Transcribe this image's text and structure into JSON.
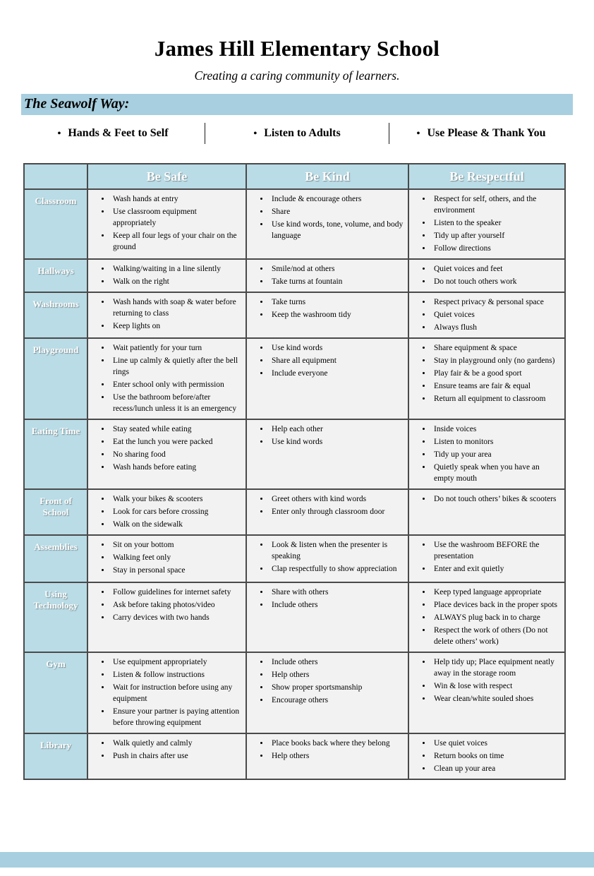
{
  "header": {
    "title": "James Hill Elementary School",
    "subtitle": "Creating a caring community of learners.",
    "banner": "The Seawolf Way:",
    "pillars": [
      "Hands & Feet to Self",
      "Listen to Adults",
      "Use Please & Thank You"
    ],
    "pillar_bullet": "•"
  },
  "colors": {
    "banner_blue": "#a7cfdf",
    "cell_blue": "#b9dce6",
    "cell_gray": "#f2f2f2",
    "border_gray": "#4a4a4a"
  },
  "table": {
    "columns": [
      "Be Safe",
      "Be Kind",
      "Be Respectful"
    ],
    "rows": [
      {
        "label": "Classroom",
        "be_safe": [
          "Wash hands at entry",
          "Use classroom equipment appropriately",
          "Keep all four legs of your chair on the ground"
        ],
        "be_kind": [
          "Include & encourage others",
          "Share",
          "Use kind words, tone, volume, and body language"
        ],
        "be_respectful": [
          "Respect for self, others, and the environment",
          "Listen to the speaker",
          "Tidy up after yourself",
          "Follow directions"
        ]
      },
      {
        "label": "Hallways",
        "be_safe": [
          "Walking/waiting in a line silently",
          "Walk on the right"
        ],
        "be_kind": [
          "Smile/nod at others",
          "Take turns at fountain"
        ],
        "be_respectful": [
          "Quiet voices and feet",
          "Do not touch others work"
        ]
      },
      {
        "label": "Washrooms",
        "be_safe": [
          "Wash hands with soap & water before returning to class",
          "Keep lights on"
        ],
        "be_kind": [
          "Take turns",
          "Keep the washroom tidy"
        ],
        "be_respectful": [
          "Respect privacy & personal space",
          "Quiet voices",
          "Always flush"
        ]
      },
      {
        "label": "Playground",
        "be_safe": [
          "Wait patiently for your turn",
          "Line up calmly & quietly after the bell rings",
          "Enter school only with permission",
          "Use the bathroom before/after recess/lunch unless it is an emergency"
        ],
        "be_kind": [
          "Use kind words",
          "Share all equipment",
          "Include everyone"
        ],
        "be_respectful": [
          "Share equipment & space",
          "Stay in playground only (no gardens)",
          "Play fair & be a good sport",
          "Ensure teams are fair & equal",
          "Return all equipment to classroom"
        ]
      },
      {
        "label": "Eating Time",
        "be_safe": [
          "Stay seated while eating",
          "Eat the lunch you were packed",
          "No sharing food",
          "Wash hands before eating"
        ],
        "be_kind": [
          "Help each other",
          "Use kind words"
        ],
        "be_respectful": [
          "Inside voices",
          "Listen to monitors",
          "Tidy up your area",
          "Quietly speak when you have an empty mouth"
        ]
      },
      {
        "label": "Front of School",
        "be_safe": [
          "Walk your bikes & scooters",
          "Look for cars before crossing",
          "Walk on the sidewalk"
        ],
        "be_kind": [
          "Greet others with kind words",
          "Enter only through classroom door"
        ],
        "be_respectful": [
          "Do not touch others’ bikes & scooters"
        ]
      },
      {
        "label": "Assemblies",
        "be_safe": [
          "Sit on your bottom",
          "Walking feet only",
          "Stay in personal space"
        ],
        "be_kind": [
          "Look & listen when the presenter is speaking",
          "Clap respectfully to show appreciation"
        ],
        "be_respectful": [
          "Use the washroom BEFORE the presentation",
          "Enter and exit quietly"
        ]
      },
      {
        "label": "Using Technology",
        "be_safe": [
          "Follow guidelines for internet safety",
          "Ask before taking photos/video",
          "Carry devices with two hands"
        ],
        "be_kind": [
          "Share with others",
          "Include others"
        ],
        "be_respectful": [
          "Keep typed language appropriate",
          "Place devices back in the proper spots",
          "ALWAYS plug back in to charge",
          "Respect the work of others (Do not delete others’ work)"
        ]
      },
      {
        "label": "Gym",
        "be_safe": [
          "Use equipment appropriately",
          "Listen & follow instructions",
          "Wait for instruction before using any equipment",
          "Ensure your partner is paying attention before throwing equipment"
        ],
        "be_kind": [
          "Include others",
          "Help others",
          "Show proper sportsmanship",
          "Encourage others"
        ],
        "be_respectful": [
          "Help tidy up; Place equipment neatly away in the storage room",
          "Win & lose with respect",
          "Wear clean/white souled shoes"
        ]
      },
      {
        "label": "Library",
        "be_safe": [
          "Walk quietly and calmly",
          "Push in chairs after use"
        ],
        "be_kind": [
          "Place books back where they belong",
          "Help others"
        ],
        "be_respectful": [
          "Use quiet voices",
          "Return books on time",
          "Clean up your area"
        ]
      }
    ]
  }
}
